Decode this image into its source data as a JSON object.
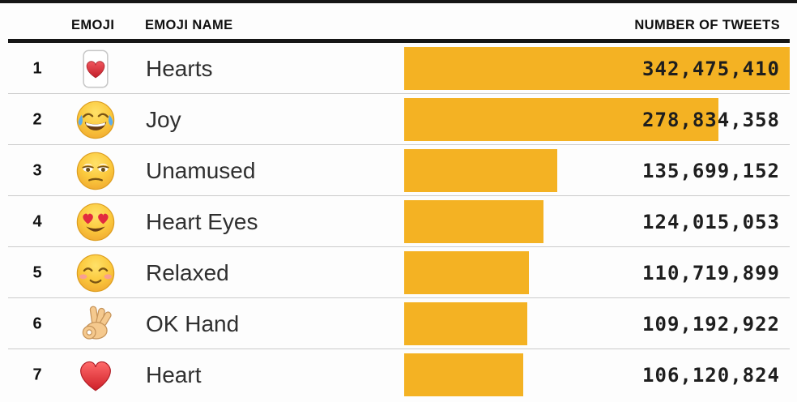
{
  "header": {
    "col_emoji": "EMOJI",
    "col_name": "EMOJI NAME",
    "col_tweets": "NUMBER OF TWEETS"
  },
  "chart_data": {
    "type": "bar",
    "orientation": "horizontal",
    "title": "",
    "xlabel": "NUMBER OF TWEETS",
    "ylabel": "EMOJI NAME",
    "categories": [
      "Hearts",
      "Joy",
      "Unamused",
      "Heart Eyes",
      "Relaxed",
      "OK Hand",
      "Heart"
    ],
    "values": [
      342475410,
      278834358,
      135699152,
      124015053,
      110719899,
      109192922,
      106120824
    ],
    "value_labels": [
      "342,475,410",
      "278,834,358",
      "135,699,152",
      "124,015,053",
      "110,719,899",
      "109,192,922",
      "106,120,824"
    ],
    "max_value": 342475410,
    "bar_color": "#F4B223",
    "grid": false,
    "legend": false
  },
  "rows": [
    {
      "rank": "1",
      "icon": "hearts-suit",
      "name": "Hearts",
      "value": 342475410,
      "label": "342,475,410"
    },
    {
      "rank": "2",
      "icon": "face-joy",
      "name": "Joy",
      "value": 278834358,
      "label": "278,834,358"
    },
    {
      "rank": "3",
      "icon": "face-unamused",
      "name": "Unamused",
      "value": 135699152,
      "label": "135,699,152"
    },
    {
      "rank": "4",
      "icon": "face-heart-eyes",
      "name": "Heart Eyes",
      "value": 124015053,
      "label": "124,015,053"
    },
    {
      "rank": "5",
      "icon": "face-relaxed",
      "name": "Relaxed",
      "value": 110719899,
      "label": "110,719,899"
    },
    {
      "rank": "6",
      "icon": "ok-hand",
      "name": "OK Hand",
      "value": 109192922,
      "label": "109,192,922"
    },
    {
      "rank": "7",
      "icon": "red-heart",
      "name": "Heart",
      "value": 106120824,
      "label": "106,120,824"
    }
  ]
}
